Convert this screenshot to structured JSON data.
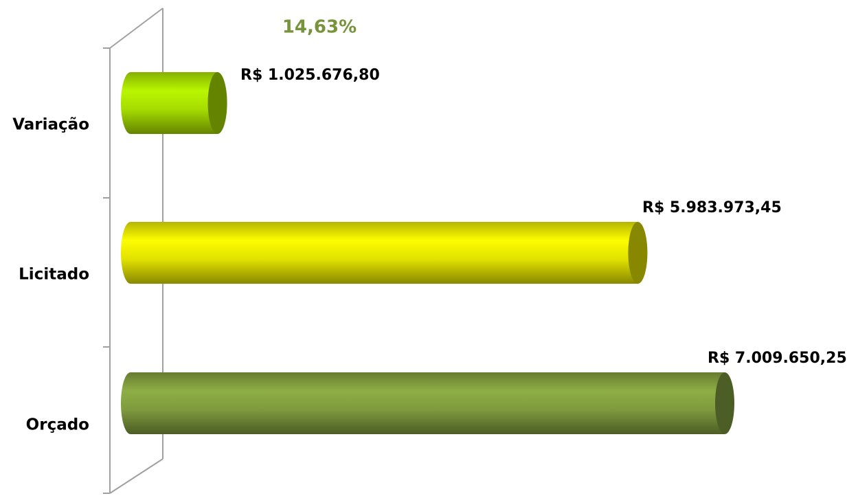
{
  "chart_data": {
    "type": "bar",
    "orientation": "horizontal",
    "annotation": "14,63%",
    "categories": [
      "Variação",
      "Licitado",
      "Orçado"
    ],
    "values": [
      1025676.8,
      5983973.45,
      7009650.25
    ],
    "value_labels": [
      "R$ 1.025.676,80",
      "R$ 5.983.973,45",
      "R$ 7.009.650,25"
    ],
    "colors": [
      "#a6dc00",
      "#e2e200",
      "#7f9b3e"
    ]
  }
}
